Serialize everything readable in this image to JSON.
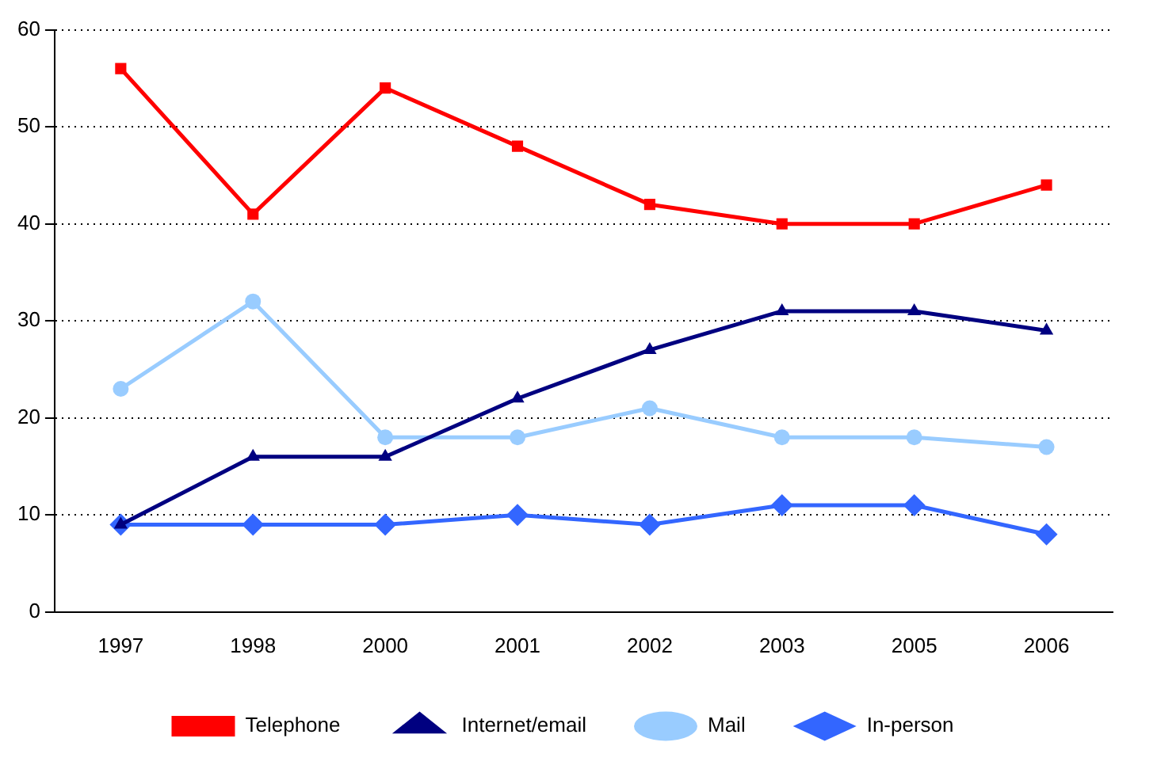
{
  "chart_data": {
    "type": "line",
    "categories": [
      "1997",
      "1998",
      "2000",
      "2001",
      "2002",
      "2003",
      "2005",
      "2006"
    ],
    "series": [
      {
        "name": "Telephone",
        "color": "#ff0000",
        "marker": "square",
        "values": [
          56,
          41,
          54,
          48,
          42,
          40,
          40,
          44
        ]
      },
      {
        "name": "Internet/email",
        "color": "#000080",
        "marker": "triangle",
        "values": [
          9,
          16,
          16,
          22,
          27,
          31,
          31,
          29
        ]
      },
      {
        "name": "Mail",
        "color": "#99ccff",
        "marker": "circle",
        "values": [
          23,
          32,
          18,
          18,
          21,
          18,
          18,
          17
        ]
      },
      {
        "name": "In-person",
        "color": "#3366ff",
        "marker": "diamond",
        "values": [
          9,
          9,
          9,
          10,
          9,
          11,
          11,
          8
        ]
      }
    ],
    "ylim": [
      0,
      60
    ],
    "yticks": [
      0,
      10,
      20,
      30,
      40,
      50,
      60
    ],
    "grid": "y",
    "legend": "bottom",
    "line_style": "solid"
  }
}
